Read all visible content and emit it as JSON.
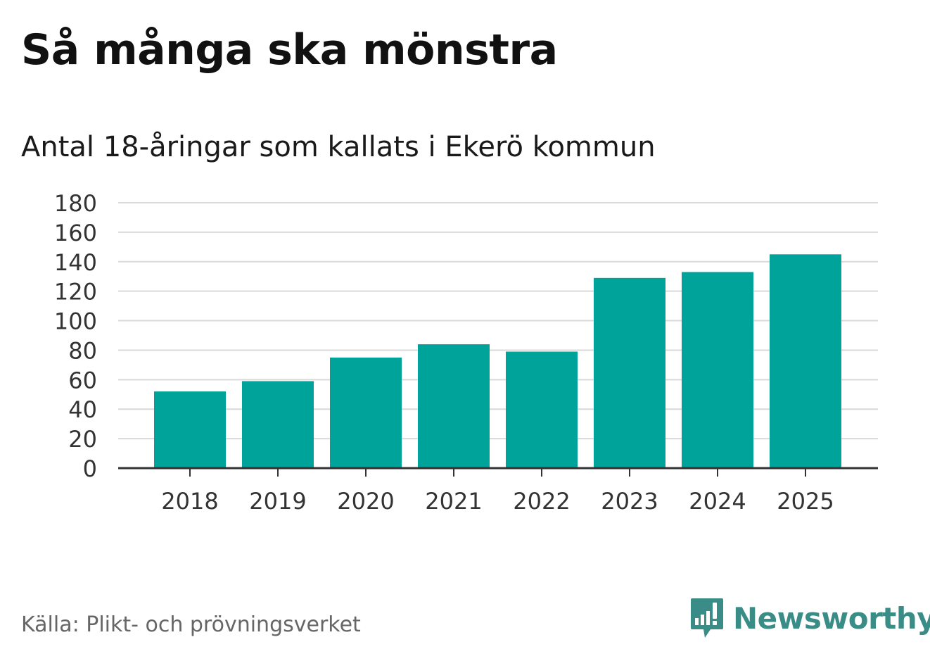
{
  "header": {
    "title": "Så många ska mönstra",
    "subtitle": "Antal 18-åringar som kallats i Ekerö kommun"
  },
  "footer": {
    "source": "Källa: Plikt- och prövningsverket",
    "brand": "Newsworthy",
    "brand_icon": "bar-chart-speech-bubble-icon"
  },
  "colors": {
    "bar": "#00a39a",
    "grid": "#d9d9d9",
    "axis": "#333333",
    "brand": "#3a8c86"
  },
  "chart_data": {
    "type": "bar",
    "title": "Så många ska mönstra",
    "subtitle": "Antal 18-åringar som kallats i Ekerö kommun",
    "categories": [
      "2018",
      "2019",
      "2020",
      "2021",
      "2022",
      "2023",
      "2024",
      "2025"
    ],
    "values": [
      52,
      59,
      75,
      84,
      79,
      129,
      133,
      145
    ],
    "xlabel": "",
    "ylabel": "",
    "ylim": [
      0,
      180
    ],
    "yticks": [
      0,
      20,
      40,
      60,
      80,
      100,
      120,
      140,
      160,
      180
    ],
    "grid": true,
    "legend": "none"
  }
}
